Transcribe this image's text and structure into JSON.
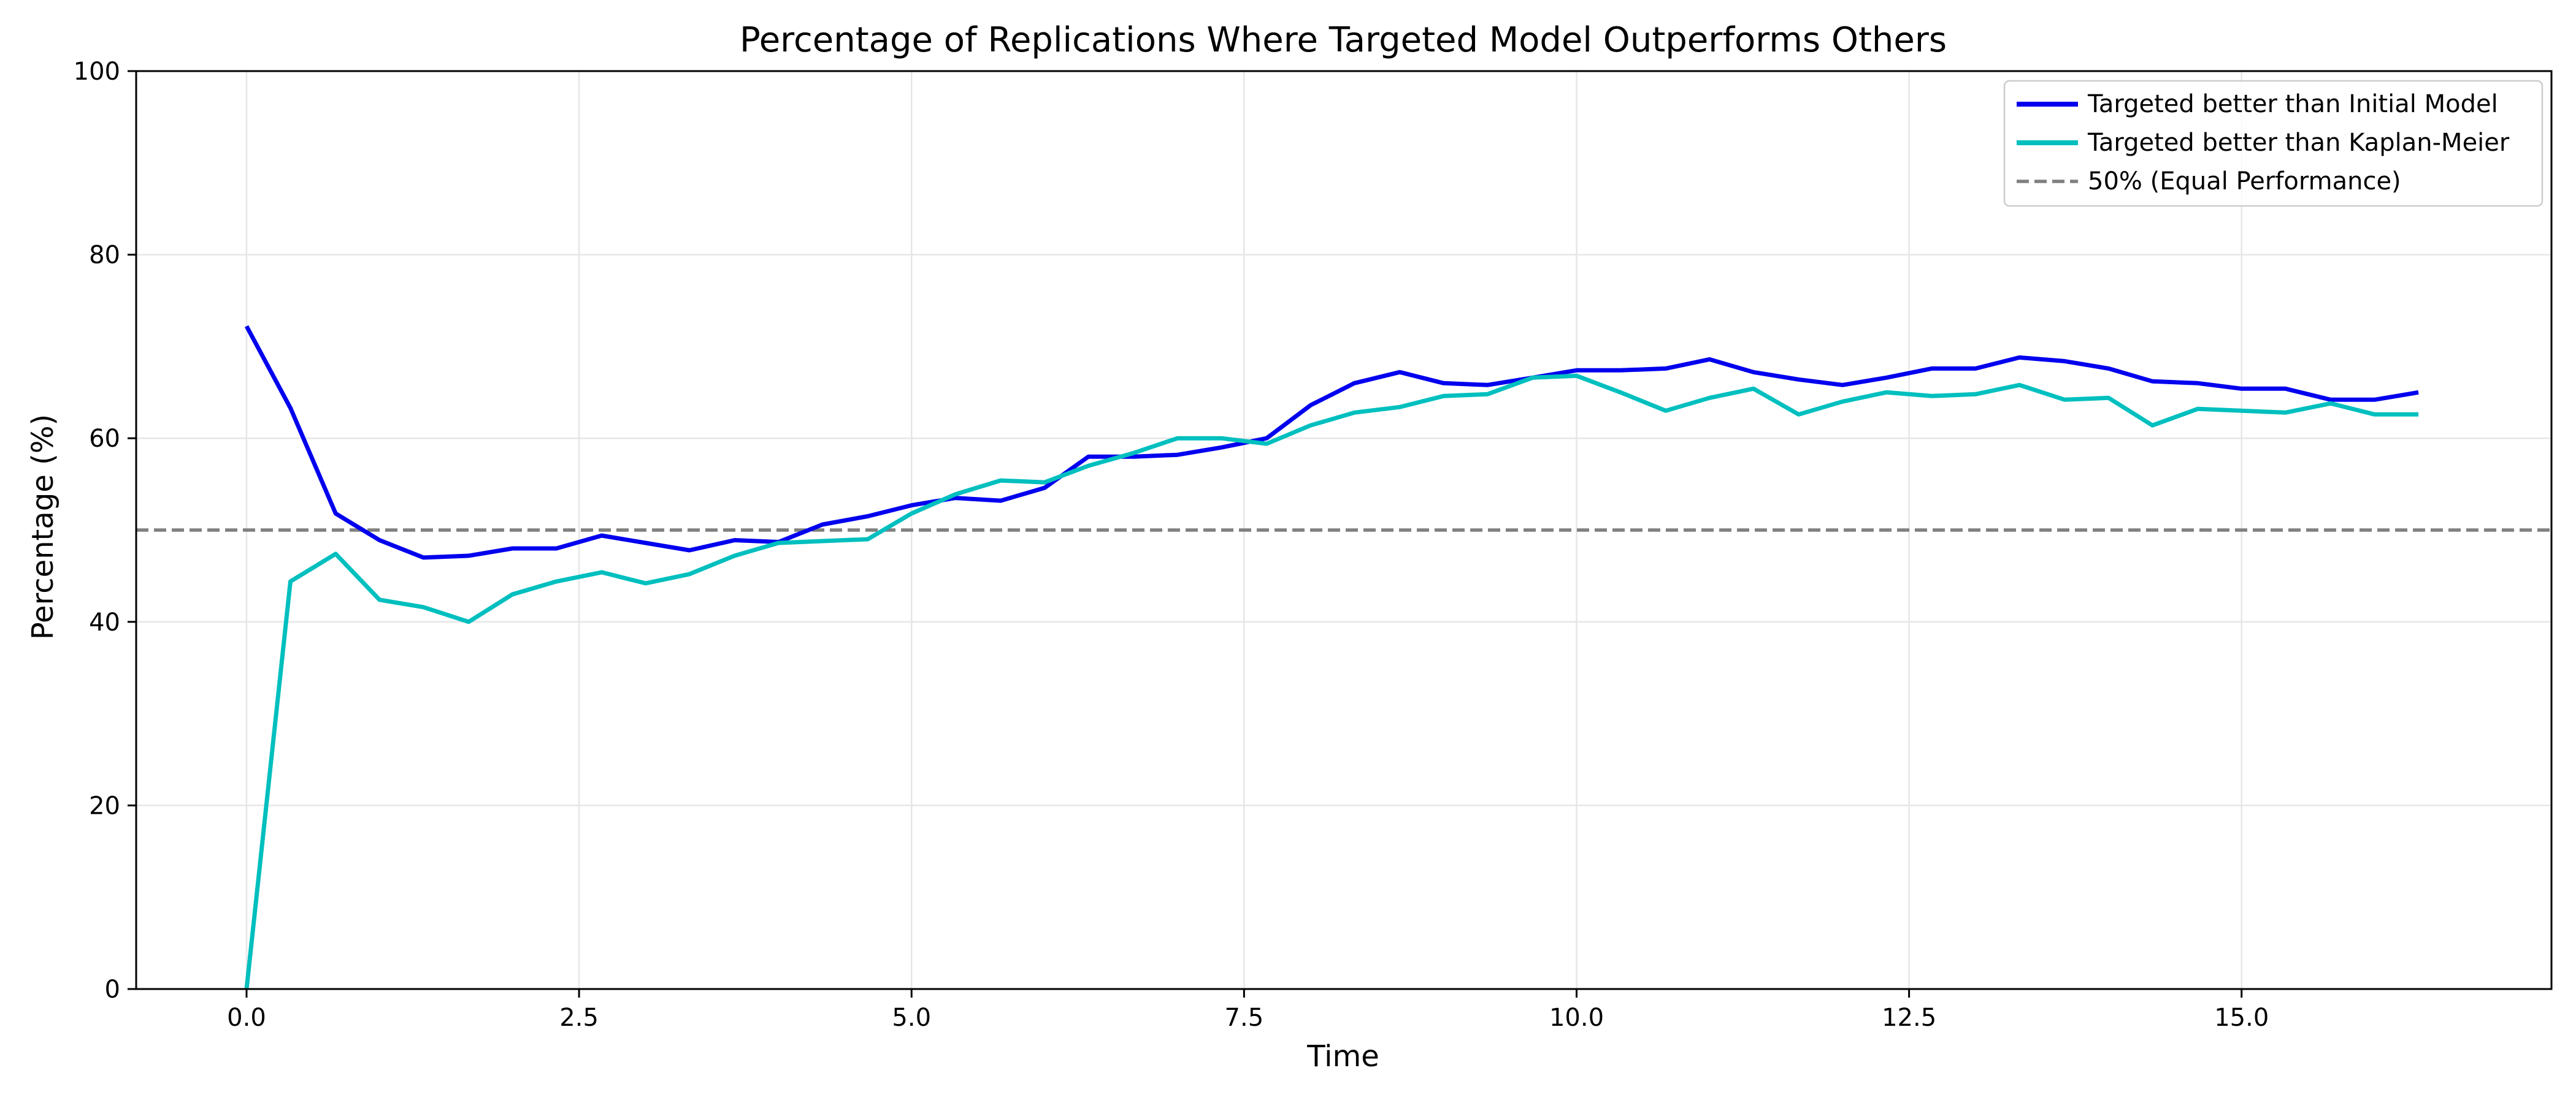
{
  "chart_data": {
    "type": "line",
    "title": "Percentage of Replications Where Targeted Model Outperforms Others",
    "xlabel": "Time",
    "ylabel": "Percentage (%)",
    "xlim": [
      -0.83,
      17.33
    ],
    "ylim": [
      0,
      100
    ],
    "xticks": [
      0.0,
      2.5,
      5.0,
      7.5,
      10.0,
      12.5,
      15.0
    ],
    "xtick_labels": [
      "0.0",
      "2.5",
      "5.0",
      "7.5",
      "10.0",
      "12.5",
      "15.0"
    ],
    "yticks": [
      0,
      20,
      40,
      60,
      80,
      100
    ],
    "ytick_labels": [
      "0",
      "20",
      "40",
      "60",
      "80",
      "100"
    ],
    "grid": true,
    "legend_position": "top-right",
    "reference_line": {
      "name": "50% (Equal Performance)",
      "y": 50,
      "color": "#808080",
      "style": "dashed"
    },
    "series": [
      {
        "name": "Targeted better than Initial Model",
        "color": "#0000ee",
        "x": [
          0.0,
          0.33,
          0.67,
          1.0,
          1.33,
          1.67,
          2.0,
          2.33,
          2.67,
          3.0,
          3.33,
          3.67,
          4.0,
          4.33,
          4.67,
          5.0,
          5.33,
          5.67,
          6.0,
          6.33,
          6.67,
          7.0,
          7.33,
          7.67,
          8.0,
          8.33,
          8.67,
          9.0,
          9.33,
          9.67,
          10.0,
          10.33,
          10.67,
          11.0,
          11.33,
          11.67,
          12.0,
          12.33,
          12.67,
          13.0,
          13.33,
          13.67,
          14.0,
          14.33,
          14.67,
          15.0,
          15.33,
          15.67,
          16.0,
          16.33
        ],
        "y": [
          72.2,
          63.3,
          51.8,
          48.9,
          47.0,
          47.2,
          48.0,
          48.0,
          49.4,
          48.6,
          47.8,
          48.9,
          48.7,
          50.6,
          51.5,
          52.7,
          53.5,
          53.2,
          54.6,
          58.0,
          58.0,
          58.2,
          59.0,
          60.0,
          63.6,
          66.0,
          67.2,
          66.0,
          65.8,
          66.6,
          67.4,
          67.4,
          67.6,
          68.6,
          67.2,
          66.4,
          65.8,
          66.6,
          67.6,
          67.6,
          68.8,
          68.4,
          67.6,
          66.2,
          66.0,
          65.4,
          65.4,
          64.2,
          64.2,
          65.0
        ]
      },
      {
        "name": "Targeted better than Kaplan-Meier",
        "color": "#00bfbf",
        "x": [
          0.0,
          0.33,
          0.67,
          1.0,
          1.33,
          1.67,
          2.0,
          2.33,
          2.67,
          3.0,
          3.33,
          3.67,
          4.0,
          4.33,
          4.67,
          5.0,
          5.33,
          5.67,
          6.0,
          6.33,
          6.67,
          7.0,
          7.33,
          7.67,
          8.0,
          8.33,
          8.67,
          9.0,
          9.33,
          9.67,
          10.0,
          10.33,
          10.67,
          11.0,
          11.33,
          11.67,
          12.0,
          12.33,
          12.67,
          13.0,
          13.33,
          13.67,
          14.0,
          14.33,
          14.67,
          15.0,
          15.33,
          15.67,
          16.0,
          16.33
        ],
        "y": [
          0.0,
          44.4,
          47.4,
          42.4,
          41.6,
          40.0,
          43.0,
          44.4,
          45.4,
          44.2,
          45.2,
          47.2,
          48.6,
          48.8,
          49.0,
          51.8,
          53.9,
          55.4,
          55.2,
          57.0,
          58.4,
          60.0,
          60.0,
          59.4,
          61.4,
          62.8,
          63.4,
          64.6,
          64.8,
          66.6,
          66.8,
          65.0,
          63.0,
          64.4,
          65.4,
          62.6,
          64.0,
          65.0,
          64.6,
          64.8,
          65.8,
          64.2,
          64.4,
          61.4,
          63.2,
          63.0,
          62.8,
          63.8,
          62.6,
          62.6
        ]
      }
    ]
  }
}
